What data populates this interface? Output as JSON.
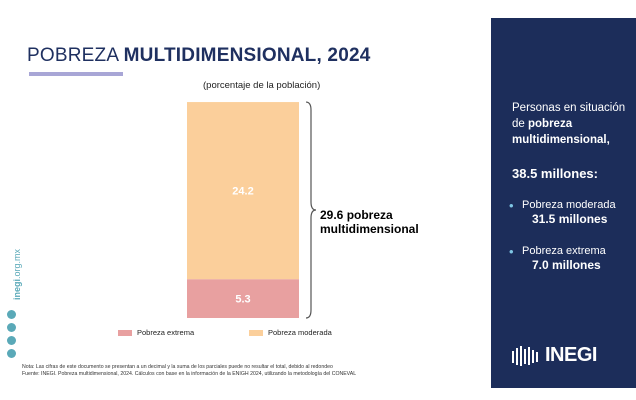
{
  "title": {
    "prefix": "POBREZA ",
    "bold": "MULTIDIMENSIONAL, 2024"
  },
  "subtitle": "(porcentaje de la población)",
  "chart_data": {
    "type": "bar",
    "stacked": true,
    "categories": [
      ""
    ],
    "series": [
      {
        "name": "Pobreza extrema",
        "values": [
          5.3
        ],
        "color": "#e8a0a0"
      },
      {
        "name": "Pobreza moderada",
        "values": [
          24.2
        ],
        "color": "#fbcf9b"
      }
    ],
    "total_label": "29.6 pobreza multidimensional",
    "legend": "bottom"
  },
  "side": {
    "brand": "inegi",
    "rest": ".org.mx"
  },
  "notes": {
    "nota": "Nota:     Las cifras de este documento se presentan a un decimal y la suma de los parciales puede no resultar el total, debido al redondeo",
    "fuente": "Fuente:  INEGI. Pobreza multidimensional, 2024. Cálculos con base en la información de la ENIGH 2024, utilizando la metodología del CONEVAL"
  },
  "panel": {
    "intro_a": "Personas en situación de ",
    "intro_b": "pobreza multidimensional,",
    "total": "38.5 millones:",
    "items": [
      {
        "label": "Pobreza moderada",
        "value": "31.5 millones"
      },
      {
        "label": "Pobreza extrema",
        "value": "7.0 millones"
      }
    ],
    "logo": "INEGI"
  },
  "colors": {
    "navy": "#1c2d5a",
    "accent": "#7fc6e4",
    "title": "#1f3060"
  }
}
